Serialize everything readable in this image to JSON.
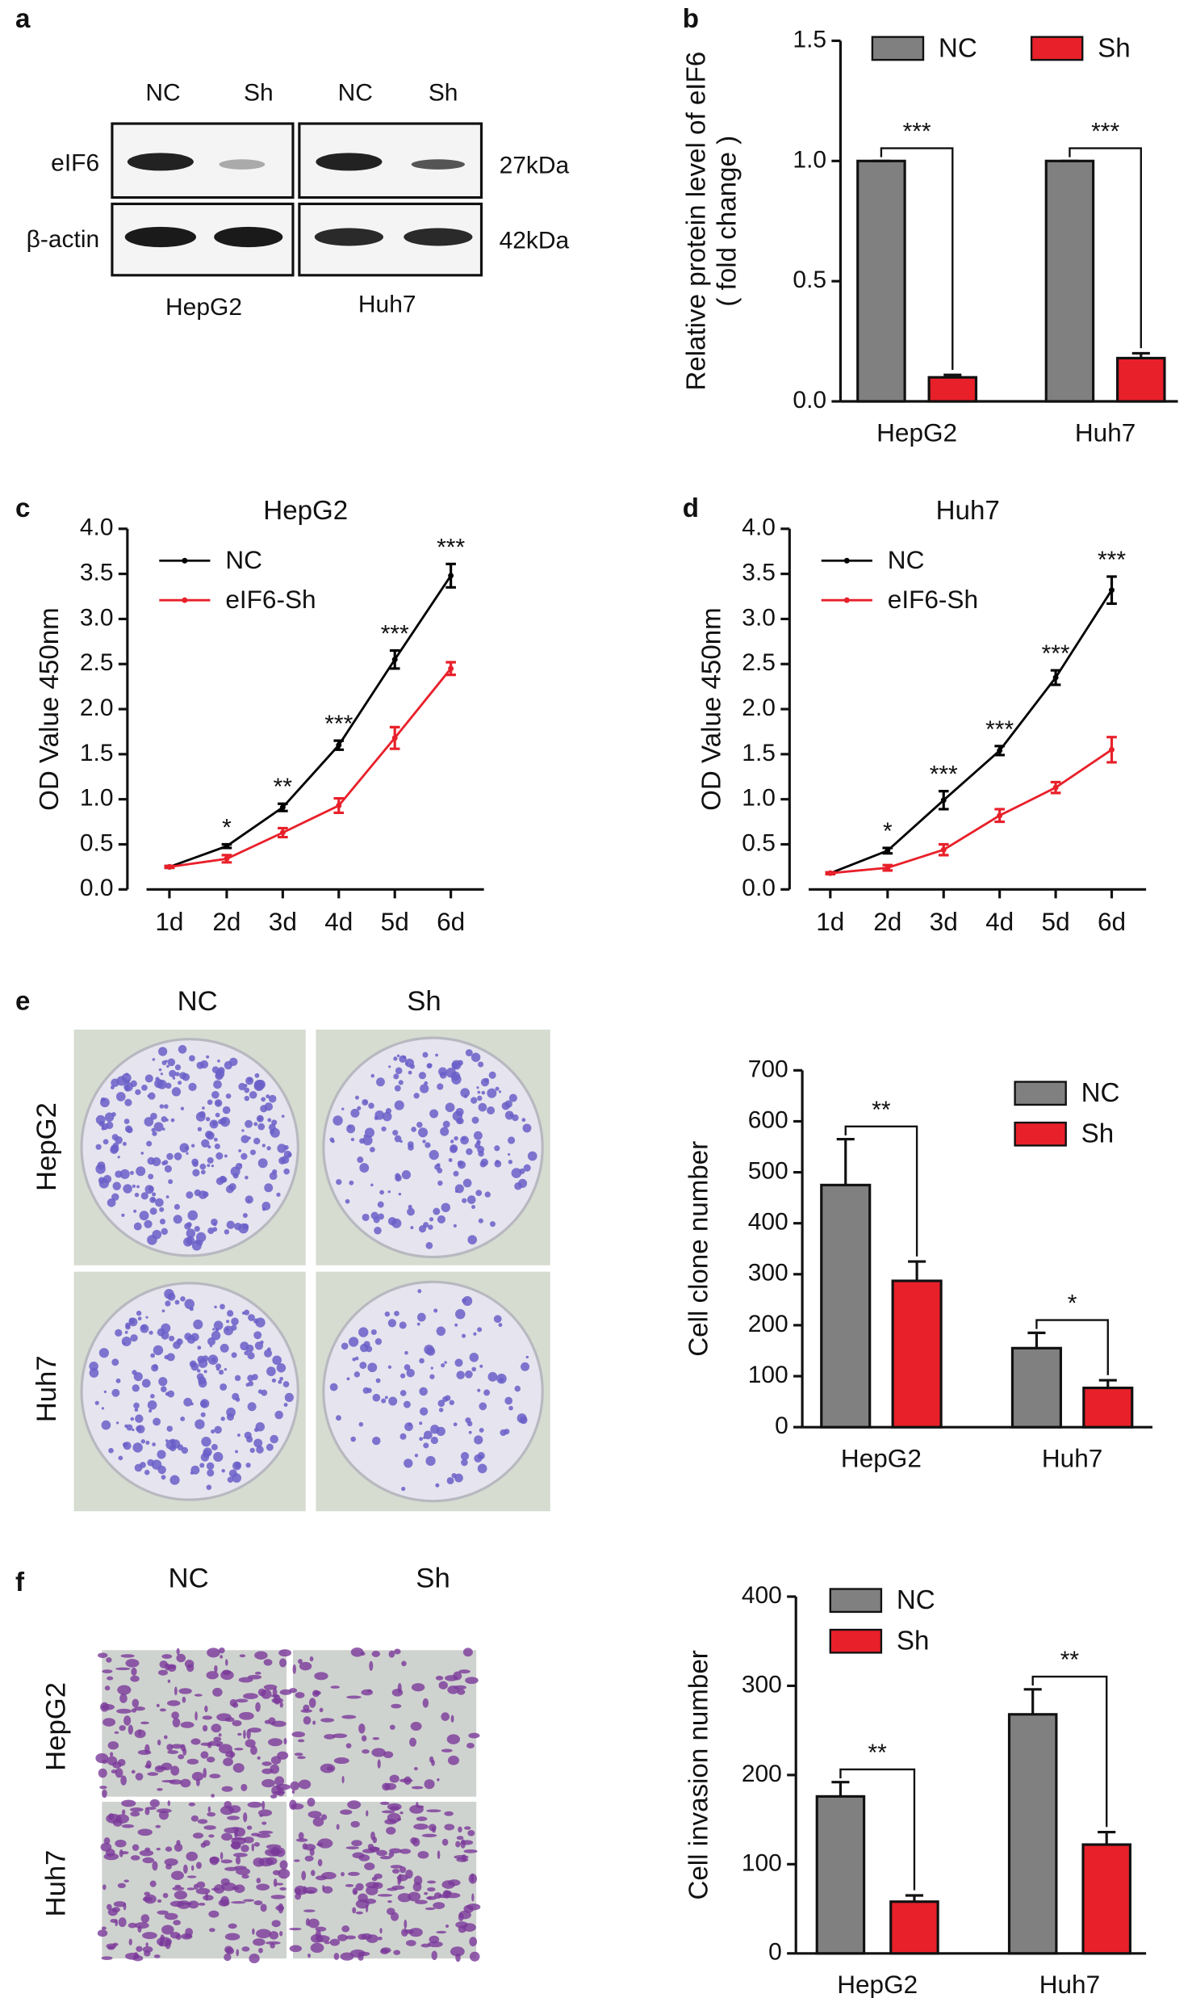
{
  "panel_labels": [
    "a",
    "b",
    "c",
    "d",
    "e",
    "f"
  ],
  "blot": {
    "columns": [
      "NC",
      "Sh",
      "NC",
      "Sh"
    ],
    "rows": [
      "eIF6",
      "β-actin"
    ],
    "sizes": [
      "27kDa",
      "42kDa"
    ],
    "cell_lines": [
      "HepG2",
      "Huh7"
    ]
  },
  "colony": {
    "columns": [
      "NC",
      "Sh"
    ],
    "rows": [
      "HepG2",
      "Huh7"
    ]
  },
  "invasion": {
    "columns": [
      "NC",
      "Sh"
    ],
    "rows": [
      "HepG2",
      "Huh7"
    ]
  },
  "chart_data": [
    {
      "type": "bar",
      "ylabel": [
        "Relative protein level of eIF6",
        "( fold change )"
      ],
      "categories": [
        "HepG2",
        "Huh7"
      ],
      "series": [
        {
          "name": "NC",
          "color": "#808080",
          "values": [
            1.0,
            1.0
          ],
          "errors": [
            0,
            0
          ]
        },
        {
          "name": "Sh",
          "color": "#e8202a",
          "values": [
            0.1,
            0.18
          ],
          "errors": [
            0.01,
            0.02
          ]
        }
      ],
      "annotations": [
        "***",
        "***"
      ],
      "ylim": [
        0,
        1.5
      ],
      "yticks": [
        {
          "value": 0,
          "label": "0.0"
        },
        {
          "value": 0.5,
          "label": "0.5"
        },
        {
          "value": 1,
          "label": "1.0"
        },
        {
          "value": 1.5,
          "label": "1.5"
        }
      ],
      "legend": "top"
    },
    {
      "type": "line",
      "title": "HepG2",
      "ylabel": [
        "OD Value 450nm"
      ],
      "categories": [
        "1d",
        "2d",
        "3d",
        "4d",
        "5d",
        "6d"
      ],
      "series": [
        {
          "name": "NC",
          "color": "#000000",
          "values": [
            0.25,
            0.48,
            0.91,
            1.6,
            2.55,
            3.48
          ],
          "errors": [
            0.01,
            0.02,
            0.04,
            0.05,
            0.1,
            0.13
          ]
        },
        {
          "name": "eIF6-Sh",
          "color": "#e8202a",
          "values": [
            0.25,
            0.34,
            0.63,
            0.93,
            1.68,
            2.45
          ],
          "errors": [
            0.01,
            0.04,
            0.05,
            0.08,
            0.12,
            0.07
          ]
        }
      ],
      "annotations": [
        null,
        "*",
        "**",
        "***",
        "***",
        "***"
      ],
      "ylim": [
        0,
        4
      ],
      "yticks": [
        {
          "value": 0,
          "label": "0.0"
        },
        {
          "value": 0.5,
          "label": "0.5"
        },
        {
          "value": 1,
          "label": "1.0"
        },
        {
          "value": 1.5,
          "label": "1.5"
        },
        {
          "value": 2,
          "label": "2.0"
        },
        {
          "value": 2.5,
          "label": "2.5"
        },
        {
          "value": 3,
          "label": "3.0"
        },
        {
          "value": 3.5,
          "label": "3.5"
        },
        {
          "value": 4,
          "label": "4.0"
        }
      ],
      "legend": "upper left"
    },
    {
      "type": "line",
      "title": "Huh7",
      "ylabel": [
        "OD Value 450nm"
      ],
      "categories": [
        "1d",
        "2d",
        "3d",
        "4d",
        "5d",
        "6d"
      ],
      "series": [
        {
          "name": "NC",
          "color": "#000000",
          "values": [
            0.18,
            0.43,
            0.99,
            1.54,
            2.35,
            3.32
          ],
          "errors": [
            0.01,
            0.03,
            0.1,
            0.05,
            0.08,
            0.15
          ]
        },
        {
          "name": "eIF6-Sh",
          "color": "#e8202a",
          "values": [
            0.18,
            0.24,
            0.44,
            0.82,
            1.13,
            1.55
          ],
          "errors": [
            0.01,
            0.03,
            0.06,
            0.07,
            0.06,
            0.14
          ]
        }
      ],
      "annotations": [
        null,
        "*",
        "***",
        "***",
        "***",
        "***"
      ],
      "ylim": [
        0,
        4
      ],
      "yticks": [
        {
          "value": 0,
          "label": "0.0"
        },
        {
          "value": 0.5,
          "label": "0.5"
        },
        {
          "value": 1,
          "label": "1.0"
        },
        {
          "value": 1.5,
          "label": "1.5"
        },
        {
          "value": 2,
          "label": "2.0"
        },
        {
          "value": 2.5,
          "label": "2.5"
        },
        {
          "value": 3,
          "label": "3.0"
        },
        {
          "value": 3.5,
          "label": "3.5"
        },
        {
          "value": 4,
          "label": "4.0"
        }
      ],
      "legend": "upper left"
    },
    {
      "type": "bar",
      "ylabel": [
        "Cell clone number"
      ],
      "categories": [
        "HepG2",
        "Huh7"
      ],
      "series": [
        {
          "name": "NC",
          "color": "#808080",
          "values": [
            475,
            155
          ],
          "errors": [
            90,
            30
          ]
        },
        {
          "name": "Sh",
          "color": "#e8202a",
          "values": [
            287,
            77
          ],
          "errors": [
            38,
            15
          ]
        }
      ],
      "annotations": [
        "**",
        "*"
      ],
      "ylim": [
        0,
        700
      ],
      "yticks": [
        0,
        100,
        200,
        300,
        400,
        500,
        600,
        700
      ],
      "legend": "upper right"
    },
    {
      "type": "bar",
      "ylabel": [
        "Cell invasion number"
      ],
      "categories": [
        "HepG2",
        "Huh7"
      ],
      "series": [
        {
          "name": "NC",
          "color": "#808080",
          "values": [
            176,
            268
          ],
          "errors": [
            16,
            28
          ]
        },
        {
          "name": "Sh",
          "color": "#e8202a",
          "values": [
            58,
            122
          ],
          "errors": [
            7,
            14
          ]
        }
      ],
      "annotations": [
        "**",
        "**"
      ],
      "ylim": [
        0,
        400
      ],
      "yticks": [
        0,
        100,
        200,
        300,
        400
      ],
      "legend": "upper left"
    }
  ]
}
